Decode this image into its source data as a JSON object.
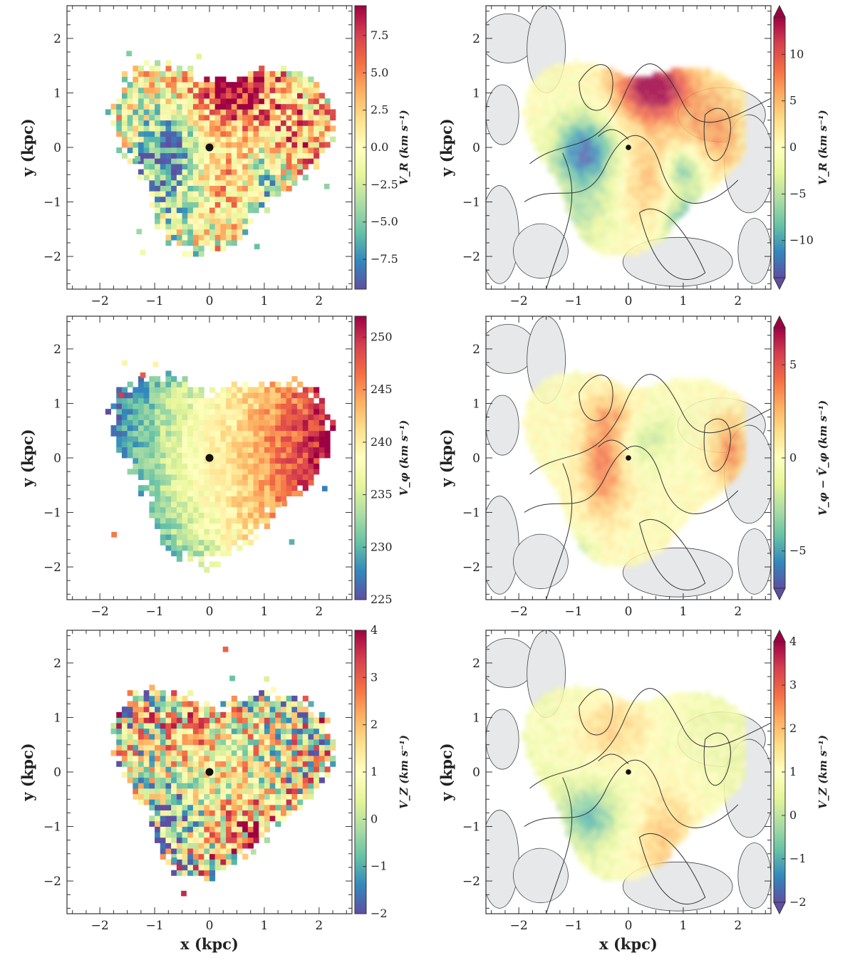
{
  "panels": [
    {
      "id": "vr-binned",
      "type": "binned",
      "seed": 11,
      "field": "vr",
      "ylabel": "y (kpc)",
      "xlabel": "",
      "x_ticks": [
        "−2",
        "−1",
        "0",
        "1",
        "2"
      ],
      "y_ticks": [
        "2",
        "1",
        "0",
        "−1",
        "−2"
      ],
      "x_tick_values": [
        -2,
        -1,
        0,
        1,
        2
      ],
      "y_tick_values": [
        2,
        1,
        0,
        -1,
        -2
      ],
      "xlim": [
        -2.6,
        2.6
      ],
      "ylim": [
        -2.6,
        2.6
      ],
      "colorbar": {
        "label": "V_R (km s⁻¹)",
        "range": [
          -9.5,
          9.5
        ],
        "tick_values": [
          7.5,
          5.0,
          2.5,
          0.0,
          -2.5,
          -5.0,
          -7.5
        ],
        "tick_labels": [
          "7.5",
          "5.0",
          "2.5",
          "0.0",
          "−2.5",
          "−5.0",
          "−7.5"
        ],
        "extend": false
      }
    },
    {
      "id": "vr-smoothed",
      "type": "smoothed",
      "seed": 12,
      "field": "vr",
      "ylabel": "y (kpc)",
      "xlabel": "",
      "x_ticks": [
        "−2",
        "−1",
        "0",
        "1",
        "2"
      ],
      "y_ticks": [
        "2",
        "1",
        "0",
        "−1",
        "−2"
      ],
      "x_tick_values": [
        -2,
        -1,
        0,
        1,
        2
      ],
      "y_tick_values": [
        2,
        1,
        0,
        -1,
        -2
      ],
      "xlim": [
        -2.6,
        2.6
      ],
      "ylim": [
        -2.6,
        2.6
      ],
      "colorbar": {
        "label": "V_R (km s⁻¹)",
        "range": [
          -14,
          14
        ],
        "tick_values": [
          10,
          5,
          0,
          -5,
          -10
        ],
        "tick_labels": [
          "10",
          "5",
          "0",
          "−5",
          "−10"
        ],
        "extend": true
      }
    },
    {
      "id": "vphi-binned",
      "type": "binned",
      "seed": 21,
      "field": "vphi",
      "ylabel": "y (kpc)",
      "xlabel": "",
      "x_ticks": [
        "−2",
        "−1",
        "0",
        "1",
        "2"
      ],
      "y_ticks": [
        "2",
        "1",
        "0",
        "−1",
        "−2"
      ],
      "x_tick_values": [
        -2,
        -1,
        0,
        1,
        2
      ],
      "y_tick_values": [
        2,
        1,
        0,
        -1,
        -2
      ],
      "xlim": [
        -2.6,
        2.6
      ],
      "ylim": [
        -2.6,
        2.6
      ],
      "colorbar": {
        "label": "V_φ (km s⁻¹)",
        "range": [
          225,
          252
        ],
        "tick_values": [
          250,
          245,
          240,
          235,
          230,
          225
        ],
        "tick_labels": [
          "250",
          "245",
          "240",
          "235",
          "230",
          "225"
        ],
        "extend": false
      }
    },
    {
      "id": "vphi-smoothed",
      "type": "smoothed",
      "seed": 22,
      "field": "vphires",
      "ylabel": "y (kpc)",
      "xlabel": "",
      "x_ticks": [
        "−2",
        "−1",
        "0",
        "1",
        "2"
      ],
      "y_ticks": [
        "2",
        "1",
        "0",
        "−1",
        "−2"
      ],
      "x_tick_values": [
        -2,
        -1,
        0,
        1,
        2
      ],
      "y_tick_values": [
        2,
        1,
        0,
        -1,
        -2
      ],
      "xlim": [
        -2.6,
        2.6
      ],
      "ylim": [
        -2.6,
        2.6
      ],
      "colorbar": {
        "label": "V_φ − V̄_φ (km s⁻¹)",
        "range": [
          -7,
          7
        ],
        "tick_values": [
          5,
          0,
          -5
        ],
        "tick_labels": [
          "5",
          "0",
          "−5"
        ],
        "extend": true
      }
    },
    {
      "id": "vz-binned",
      "type": "binned",
      "seed": 31,
      "field": "vz",
      "ylabel": "y (kpc)",
      "xlabel": "x (kpc)",
      "x_ticks": [
        "−2",
        "−1",
        "0",
        "1",
        "2"
      ],
      "y_ticks": [
        "2",
        "1",
        "0",
        "−1",
        "−2"
      ],
      "x_tick_values": [
        -2,
        -1,
        0,
        1,
        2
      ],
      "y_tick_values": [
        2,
        1,
        0,
        -1,
        -2
      ],
      "xlim": [
        -2.6,
        2.6
      ],
      "ylim": [
        -2.6,
        2.6
      ],
      "colorbar": {
        "label": "V_Z (km s⁻¹)",
        "range": [
          -2,
          4
        ],
        "tick_values": [
          4,
          3,
          2,
          1,
          0,
          -1,
          -2
        ],
        "tick_labels": [
          "4",
          "3",
          "2",
          "1",
          "0",
          "−1",
          "−2"
        ],
        "extend": false
      }
    },
    {
      "id": "vz-smoothed",
      "type": "smoothed",
      "seed": 32,
      "field": "vz",
      "ylabel": "y (kpc)",
      "xlabel": "x (kpc)",
      "x_ticks": [
        "−2",
        "−1",
        "0",
        "1",
        "2"
      ],
      "y_ticks": [
        "2",
        "1",
        "0",
        "−1",
        "−2"
      ],
      "x_tick_values": [
        -2,
        -1,
        0,
        1,
        2
      ],
      "y_tick_values": [
        2,
        1,
        0,
        -1,
        -2
      ],
      "xlim": [
        -2.6,
        2.6
      ],
      "ylim": [
        -2.6,
        2.6
      ],
      "colorbar": {
        "label": "V_Z (km s⁻¹)",
        "range": [
          -2,
          4
        ],
        "tick_values": [
          4,
          3,
          2,
          1,
          0,
          -1,
          -2
        ],
        "tick_labels": [
          "4",
          "3",
          "2",
          "1",
          "0",
          "−1",
          "−2"
        ],
        "extend": true
      }
    }
  ],
  "chart_data": [
    {
      "type": "heatmap",
      "title": "",
      "xlabel": "",
      "ylabel": "y (kpc)",
      "xlim": [
        -2.6,
        2.6
      ],
      "ylim": [
        -2.6,
        2.6
      ],
      "colorbar_label": "V_R (km s⁻¹)",
      "colorbar_range": [
        -9.5,
        9.5
      ],
      "marker": {
        "x": 0,
        "y": 0
      }
    },
    {
      "type": "heatmap",
      "title": "",
      "xlabel": "",
      "ylabel": "y (kpc)",
      "xlim": [
        -2.6,
        2.6
      ],
      "ylim": [
        -2.6,
        2.6
      ],
      "colorbar_label": "V_R (km s⁻¹)",
      "colorbar_range": [
        -14,
        14
      ],
      "contours": true,
      "marker": {
        "x": 0,
        "y": 0
      }
    },
    {
      "type": "heatmap",
      "title": "",
      "xlabel": "",
      "ylabel": "y (kpc)",
      "xlim": [
        -2.6,
        2.6
      ],
      "ylim": [
        -2.6,
        2.6
      ],
      "colorbar_label": "V_φ (km s⁻¹)",
      "colorbar_range": [
        225,
        252
      ],
      "marker": {
        "x": 0,
        "y": 0
      }
    },
    {
      "type": "heatmap",
      "title": "",
      "xlabel": "",
      "ylabel": "y (kpc)",
      "xlim": [
        -2.6,
        2.6
      ],
      "ylim": [
        -2.6,
        2.6
      ],
      "colorbar_label": "V_φ − V̄_φ (km s⁻¹)",
      "colorbar_range": [
        -7,
        7
      ],
      "contours": true,
      "marker": {
        "x": 0,
        "y": 0
      }
    },
    {
      "type": "heatmap",
      "title": "",
      "xlabel": "x (kpc)",
      "ylabel": "y (kpc)",
      "xlim": [
        -2.6,
        2.6
      ],
      "ylim": [
        -2.6,
        2.6
      ],
      "colorbar_label": "V_Z (km s⁻¹)",
      "colorbar_range": [
        -2,
        4
      ],
      "marker": {
        "x": 0,
        "y": 0
      }
    },
    {
      "type": "heatmap",
      "title": "",
      "xlabel": "x (kpc)",
      "ylabel": "y (kpc)",
      "xlim": [
        -2.6,
        2.6
      ],
      "ylim": [
        -2.6,
        2.6
      ],
      "colorbar_label": "V_Z (km s⁻¹)",
      "colorbar_range": [
        -2,
        4
      ],
      "contours": true,
      "marker": {
        "x": 0,
        "y": 0
      }
    }
  ],
  "colormap": {
    "name": "Spectral_r",
    "stops": [
      "#5e4fa2",
      "#3288bd",
      "#66c2a5",
      "#abdda4",
      "#e6f598",
      "#ffffbf",
      "#fee08b",
      "#fdae61",
      "#f46d43",
      "#d53e4f",
      "#9e0142"
    ]
  },
  "contour_fill": "#e6e8ea"
}
